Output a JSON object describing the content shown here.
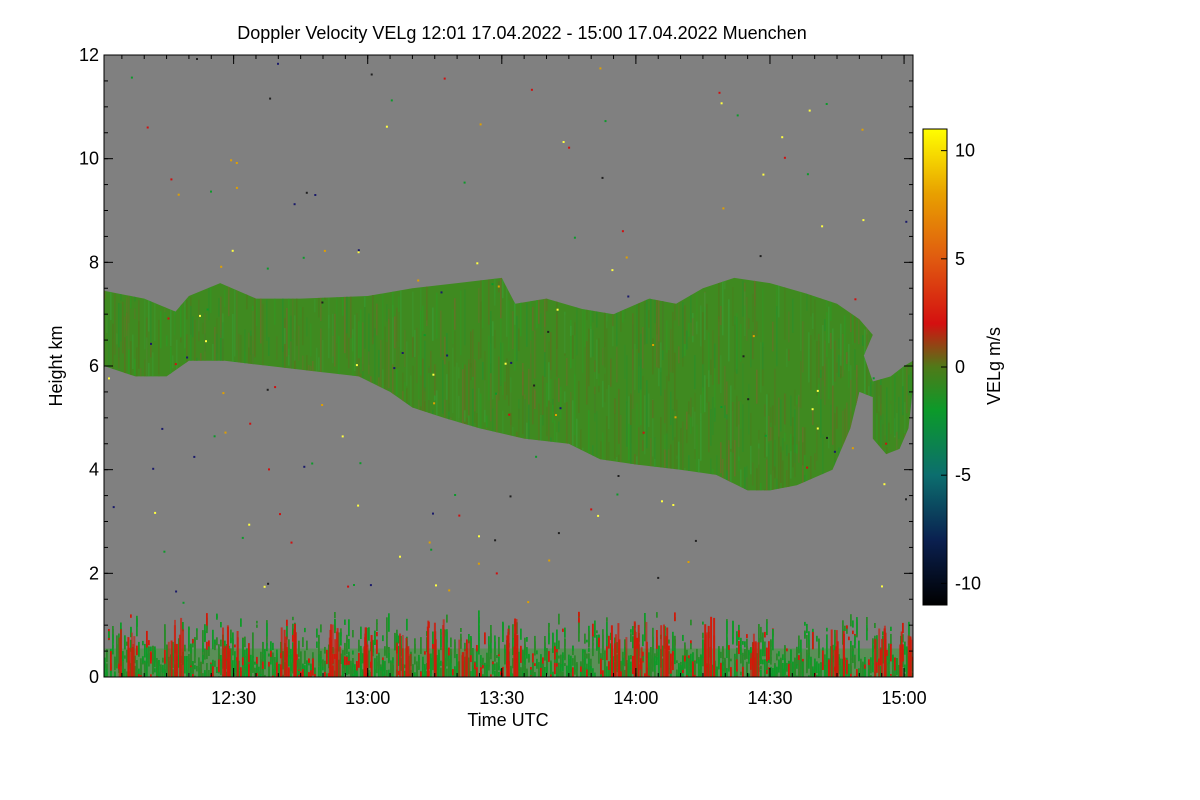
{
  "chart_data": {
    "type": "heatmap",
    "title": "Doppler Velocity VELg   12:01 17.04.2022 - 15:00 17.04.2022 Muenchen",
    "xlabel": "Time UTC",
    "ylabel": "Height km",
    "x_range_minutes_utc": [
      721,
      902
    ],
    "y_range_km": [
      0,
      12
    ],
    "x_ticks": [
      {
        "minute": 750,
        "label": "12:30"
      },
      {
        "minute": 780,
        "label": "13:00"
      },
      {
        "minute": 810,
        "label": "13:30"
      },
      {
        "minute": 840,
        "label": "14:00"
      },
      {
        "minute": 870,
        "label": "14:30"
      },
      {
        "minute": 900,
        "label": "15:00"
      }
    ],
    "y_ticks": [
      {
        "value": 0,
        "label": "0"
      },
      {
        "value": 2,
        "label": "2"
      },
      {
        "value": 4,
        "label": "4"
      },
      {
        "value": 6,
        "label": "6"
      },
      {
        "value": 8,
        "label": "8"
      },
      {
        "value": 10,
        "label": "10"
      },
      {
        "value": 12,
        "label": "12"
      }
    ],
    "background_color": "#808080",
    "colorbar": {
      "label": "VELg m/s",
      "range": [
        -11,
        11
      ],
      "ticks": [
        {
          "value": 10,
          "label": "10"
        },
        {
          "value": 5,
          "label": "5"
        },
        {
          "value": 0,
          "label": "0"
        },
        {
          "value": -5,
          "label": "-5"
        },
        {
          "value": -10,
          "label": "-10"
        }
      ],
      "color_stops": [
        {
          "value": -11,
          "color": "#000000"
        },
        {
          "value": -8,
          "color": "#0a2050"
        },
        {
          "value": -5,
          "color": "#0c6e6e"
        },
        {
          "value": -2,
          "color": "#0c9a2a"
        },
        {
          "value": 0,
          "color": "#4f7a18"
        },
        {
          "value": 2,
          "color": "#d41010"
        },
        {
          "value": 5,
          "color": "#e05a10"
        },
        {
          "value": 8,
          "color": "#e8a000"
        },
        {
          "value": 11,
          "color": "#ffff00"
        }
      ]
    },
    "cloud_layer": {
      "description_velocity_ms": -1,
      "color": "#3f8a20",
      "top_km": [
        {
          "minute": 721,
          "h": 7.45
        },
        {
          "minute": 730,
          "h": 7.3
        },
        {
          "minute": 737,
          "h": 7.05
        },
        {
          "minute": 740,
          "h": 7.35
        },
        {
          "minute": 747,
          "h": 7.6
        },
        {
          "minute": 755,
          "h": 7.3
        },
        {
          "minute": 765,
          "h": 7.3
        },
        {
          "minute": 780,
          "h": 7.35
        },
        {
          "minute": 790,
          "h": 7.5
        },
        {
          "minute": 800,
          "h": 7.6
        },
        {
          "minute": 810,
          "h": 7.7
        },
        {
          "minute": 813,
          "h": 7.2
        },
        {
          "minute": 820,
          "h": 7.3
        },
        {
          "minute": 828,
          "h": 7.1
        },
        {
          "minute": 835,
          "h": 7.0
        },
        {
          "minute": 843,
          "h": 7.3
        },
        {
          "minute": 849,
          "h": 7.2
        },
        {
          "minute": 855,
          "h": 7.5
        },
        {
          "minute": 862,
          "h": 7.7
        },
        {
          "minute": 870,
          "h": 7.6
        },
        {
          "minute": 878,
          "h": 7.4
        },
        {
          "minute": 885,
          "h": 7.2
        },
        {
          "minute": 890,
          "h": 6.9
        },
        {
          "minute": 893,
          "h": 6.6
        },
        {
          "minute": 891,
          "h": 6.2
        },
        {
          "minute": 893,
          "h": 5.7
        },
        {
          "minute": 897,
          "h": 5.8
        },
        {
          "minute": 900,
          "h": 6.0
        },
        {
          "minute": 902,
          "h": 6.1
        }
      ],
      "base_km": [
        {
          "minute": 902,
          "h": 5.6
        },
        {
          "minute": 901,
          "h": 4.8
        },
        {
          "minute": 899,
          "h": 4.4
        },
        {
          "minute": 896,
          "h": 4.3
        },
        {
          "minute": 893,
          "h": 4.6
        },
        {
          "minute": 893,
          "h": 5.4
        },
        {
          "minute": 890,
          "h": 5.5
        },
        {
          "minute": 888,
          "h": 4.8
        },
        {
          "minute": 884,
          "h": 4.0
        },
        {
          "minute": 876,
          "h": 3.7
        },
        {
          "minute": 870,
          "h": 3.6
        },
        {
          "minute": 865,
          "h": 3.6
        },
        {
          "minute": 858,
          "h": 3.9
        },
        {
          "minute": 850,
          "h": 4.0
        },
        {
          "minute": 840,
          "h": 4.1
        },
        {
          "minute": 832,
          "h": 4.2
        },
        {
          "minute": 825,
          "h": 4.5
        },
        {
          "minute": 815,
          "h": 4.6
        },
        {
          "minute": 805,
          "h": 4.8
        },
        {
          "minute": 797,
          "h": 5.0
        },
        {
          "minute": 790,
          "h": 5.2
        },
        {
          "minute": 785,
          "h": 5.5
        },
        {
          "minute": 778,
          "h": 5.8
        },
        {
          "minute": 768,
          "h": 5.9
        },
        {
          "minute": 758,
          "h": 6.0
        },
        {
          "minute": 748,
          "h": 6.1
        },
        {
          "minute": 740,
          "h": 6.1
        },
        {
          "minute": 735,
          "h": 5.8
        },
        {
          "minute": 728,
          "h": 5.8
        },
        {
          "minute": 721,
          "h": 6.0
        }
      ]
    },
    "boundary_layer": {
      "description": "Low-level echoes mixing up- (red) and downward (green) motion",
      "bottom_km": 0.0,
      "top_km": 1.3,
      "colors": [
        "#0f9a28",
        "#2a8a2a",
        "#d01a0a"
      ],
      "red_plumes_minutes": [
        726,
        737,
        749,
        762,
        773,
        779,
        788,
        795,
        802,
        812,
        836,
        841,
        847,
        856,
        866,
        885,
        894,
        900
      ]
    }
  }
}
